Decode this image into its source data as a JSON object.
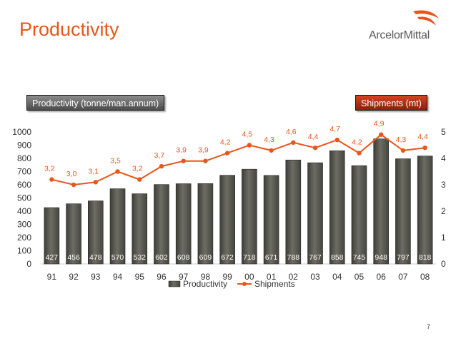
{
  "slide": {
    "title": "Productivity",
    "logo_text": "ArcelorMittal",
    "page_number": "7"
  },
  "pills": {
    "left": "Productivity (tonne/man.annum)",
    "right": "Shipments (mt)"
  },
  "colors": {
    "title": "#e8561c",
    "bars": "#585850",
    "line": "#e8561c",
    "left_pill": "#6a6a6a",
    "right_pill": "#b23418"
  },
  "chart_data": {
    "type": "bar",
    "categories": [
      "91",
      "92",
      "93",
      "94",
      "95",
      "96",
      "97",
      "98",
      "99",
      "00",
      "01",
      "02",
      "03",
      "04",
      "05",
      "06",
      "07",
      "08"
    ],
    "series": [
      {
        "name": "Productivity",
        "type": "bar",
        "axis": "left",
        "values": [
          427,
          456,
          478,
          570,
          532,
          602,
          608,
          609,
          672,
          718,
          671,
          788,
          767,
          858,
          745,
          948,
          797,
          818
        ],
        "labels": [
          "427",
          "456",
          "478",
          "570",
          "532",
          "602",
          "608",
          "609",
          "672",
          "718",
          "671",
          "788",
          "767",
          "858",
          "745",
          "948",
          "797",
          "818"
        ]
      },
      {
        "name": "Shipments",
        "type": "line",
        "axis": "right",
        "values": [
          3.2,
          3.0,
          3.1,
          3.5,
          3.2,
          3.7,
          3.9,
          3.9,
          4.2,
          4.5,
          4.3,
          4.6,
          4.4,
          4.7,
          4.2,
          4.9,
          4.3,
          4.4
        ],
        "labels": [
          "3,2",
          "3,0",
          "3,1",
          "3,5",
          "3,2",
          "3,7",
          "3,9",
          "3,9",
          "4,2",
          "4,5",
          "4,3",
          "4,6",
          "4,4",
          "4,7",
          "4,2",
          "4,9",
          "4,3",
          "4,4"
        ]
      }
    ],
    "y_left": {
      "min": 0,
      "max": 1000,
      "ticks": [
        "0",
        "100",
        "200",
        "300",
        "400",
        "500",
        "600",
        "700",
        "800",
        "900",
        "1000"
      ]
    },
    "y_right": {
      "min": 0,
      "max": 5,
      "ticks": [
        "0",
        "1",
        "2",
        "3",
        "4",
        "5"
      ]
    },
    "legend_position": "bottom-center",
    "grid": false
  }
}
